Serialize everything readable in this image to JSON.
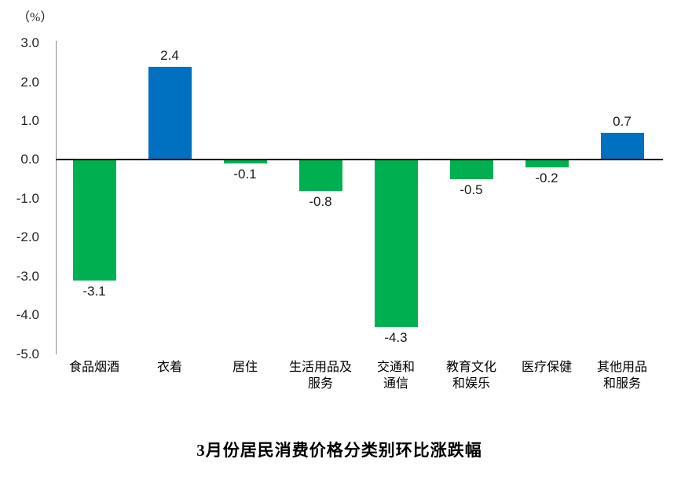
{
  "chart_data": {
    "type": "bar",
    "title": "3月份居民消费价格分类别环比涨跌幅",
    "unit_label": "（%）",
    "categories": [
      [
        "食品烟酒"
      ],
      [
        "衣着"
      ],
      [
        "居住"
      ],
      [
        "生活用品及",
        "服务"
      ],
      [
        "交通和",
        "通信"
      ],
      [
        "教育文化",
        "和娱乐"
      ],
      [
        "医疗保健"
      ],
      [
        "其他用品",
        "和服务"
      ]
    ],
    "values": [
      -3.1,
      2.4,
      -0.1,
      -0.8,
      -4.3,
      -0.5,
      -0.2,
      0.7
    ],
    "data_labels": [
      "-3.1",
      "2.4",
      "-0.1",
      "-0.8",
      "-4.3",
      "-0.5",
      "-0.2",
      "0.7"
    ],
    "y_ticks": [
      {
        "label": "3.0",
        "value": 3
      },
      {
        "label": "2.0",
        "value": 2
      },
      {
        "label": "1.0",
        "value": 1
      },
      {
        "label": "0.0",
        "value": 0
      },
      {
        "label": "-1.0",
        "value": -1
      },
      {
        "label": "-2.0",
        "value": -2
      },
      {
        "label": "-3.0",
        "value": -3
      },
      {
        "label": "-4.0",
        "value": -4
      },
      {
        "label": "-5.0",
        "value": -5
      }
    ],
    "ylim": [
      -5.0,
      3.0
    ],
    "xlabel": "",
    "ylabel": "（%）",
    "grid": false,
    "legend": null,
    "colors": {
      "positive_bar": "#0070C0",
      "negative_bar": "#00B050",
      "zero_axis_line": "#000000",
      "y_axis_line": "#898989",
      "text": "#262626"
    }
  }
}
